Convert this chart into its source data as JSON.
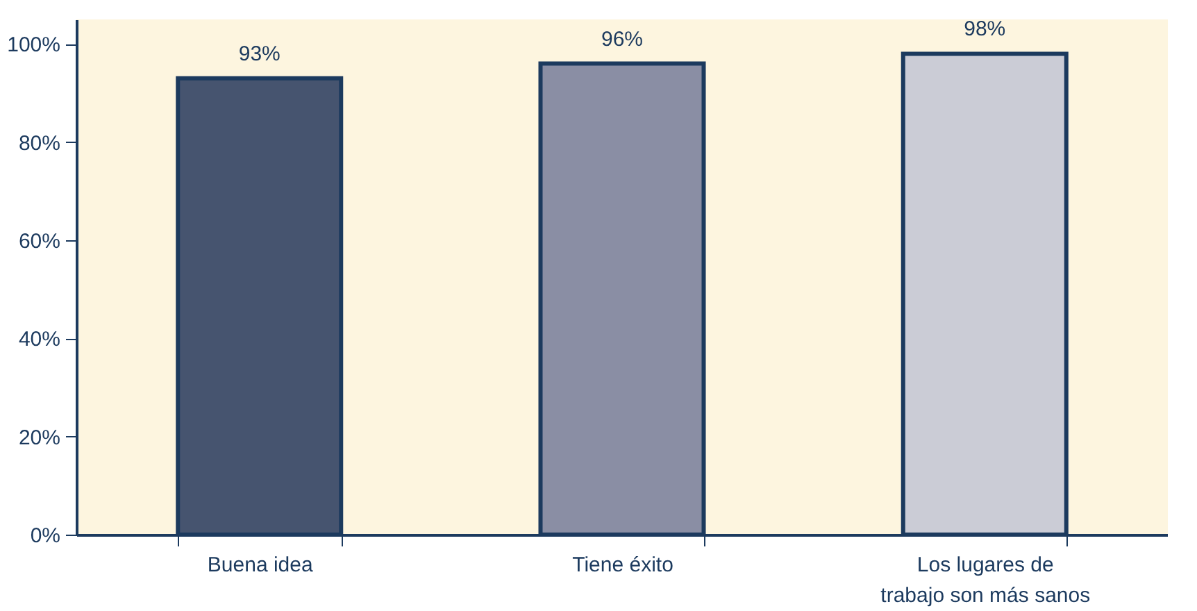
{
  "chart_data": {
    "type": "bar",
    "categories": [
      "Buena idea",
      "Tiene éxito",
      "Los lugares de trabajo son más sanos"
    ],
    "values": [
      93,
      96,
      98
    ],
    "colors": [
      "#46546f",
      "#8a8ea4",
      "#cbccd6"
    ],
    "value_labels": [
      "93%",
      "96%",
      "98%"
    ],
    "ylim": [
      0,
      105
    ],
    "yticks": [
      {
        "value": 0,
        "label": "0%"
      },
      {
        "value": 20,
        "label": "20%"
      },
      {
        "value": 40,
        "label": "40%"
      },
      {
        "value": 60,
        "label": "60%"
      },
      {
        "value": 80,
        "label": "80%"
      },
      {
        "value": 100,
        "label": "100%"
      }
    ],
    "grid": false,
    "legend": false
  }
}
